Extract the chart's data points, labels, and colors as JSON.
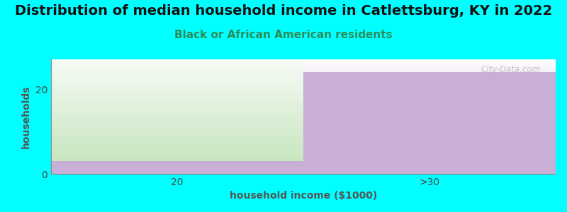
{
  "title": "Distribution of median household income in Catlettsburg, KY in 2022",
  "subtitle": "Black or African American residents",
  "xlabel": "household income ($1000)",
  "ylabel": "households",
  "background_color": "#00FFFF",
  "plot_bg_color": "#FFFFFF",
  "categories": [
    "20",
    ">30"
  ],
  "values": [
    3,
    24
  ],
  "green_color": "#c8e6c0",
  "purple_color": "#c9aed6",
  "yticks": [
    0,
    20
  ],
  "title_fontsize": 14,
  "subtitle_fontsize": 11,
  "axis_label_fontsize": 10,
  "tick_fontsize": 10,
  "title_color": "#111111",
  "subtitle_color": "#2E8B57",
  "ylabel_color": "#555555",
  "xlabel_color": "#555555",
  "watermark": "City-Data.com",
  "ylim_max": 27,
  "steps": 200
}
